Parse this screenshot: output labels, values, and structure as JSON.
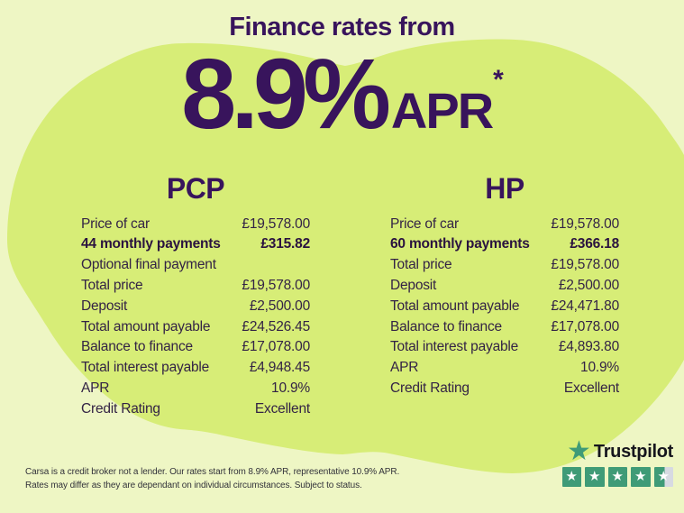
{
  "colors": {
    "background": "#eef6c4",
    "blob_green": "#d7ed77",
    "heading_purple": "#38145c",
    "table_text": "#332345",
    "disclaimer_text": "#32323a",
    "trustpilot_green": "#3f9b77",
    "trustpilot_dark": "#15151d",
    "trustpilot_gray": "#d7dae2"
  },
  "header": {
    "title": "Finance rates from",
    "rate": "8.9%",
    "rate_suffix": "APR",
    "asterisk": "*"
  },
  "pcp": {
    "title": "PCP",
    "rows": [
      {
        "label": "Price of car",
        "value": "£19,578.00",
        "bold": false
      },
      {
        "label": "44 monthly payments",
        "value": "£315.82",
        "bold": true
      },
      {
        "label": "Optional final payment",
        "value": "",
        "bold": false
      },
      {
        "label": "Total price",
        "value": "£19,578.00",
        "bold": false
      },
      {
        "label": "Deposit",
        "value": "£2,500.00",
        "bold": false
      },
      {
        "label": "Total amount payable",
        "value": "£24,526.45",
        "bold": false
      },
      {
        "label": "Balance to finance",
        "value": "£17,078.00",
        "bold": false
      },
      {
        "label": "Total interest payable",
        "value": "£4,948.45",
        "bold": false
      },
      {
        "label": "APR",
        "value": "10.9%",
        "bold": false
      },
      {
        "label": "Credit Rating",
        "value": "Excellent",
        "bold": false
      }
    ]
  },
  "hp": {
    "title": "HP",
    "rows": [
      {
        "label": "Price of car",
        "value": "£19,578.00",
        "bold": false
      },
      {
        "label": "60 monthly payments",
        "value": "£366.18",
        "bold": true
      },
      {
        "label": "Total price",
        "value": "£19,578.00",
        "bold": false
      },
      {
        "label": "Deposit",
        "value": "£2,500.00",
        "bold": false
      },
      {
        "label": "Total amount payable",
        "value": "£24,471.80",
        "bold": false
      },
      {
        "label": "Balance to finance",
        "value": "£17,078.00",
        "bold": false
      },
      {
        "label": "Total interest payable",
        "value": "£4,893.80",
        "bold": false
      },
      {
        "label": "APR",
        "value": "10.9%",
        "bold": false
      },
      {
        "label": "Credit Rating",
        "value": "Excellent",
        "bold": false
      }
    ]
  },
  "disclaimer": {
    "line1": "Carsa is a credit broker not a lender. Our rates start from 8.9% APR, representative 10.9% APR.",
    "line2": "Rates may differ as they are dependant on individual circumstances. Subject to status."
  },
  "trustpilot": {
    "brand": "Trustpilot",
    "rating": 4.5,
    "star_glyph": "★"
  }
}
